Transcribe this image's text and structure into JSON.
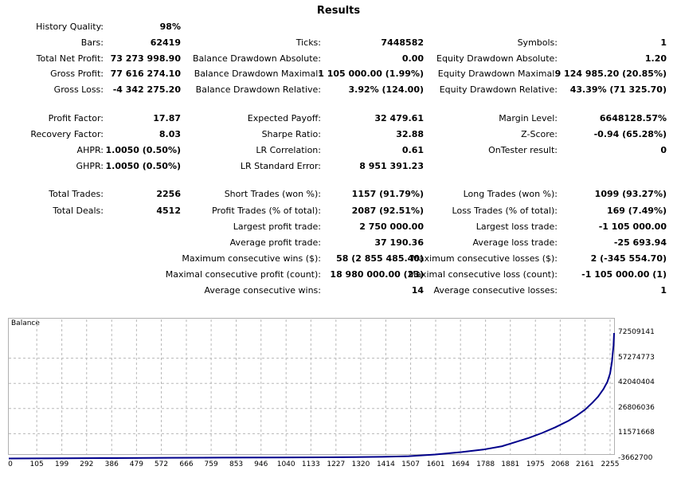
{
  "report": {
    "title": "Results",
    "rows": [
      {
        "key": "history_quality",
        "label": "History Quality:",
        "value": "98%",
        "col": 0,
        "row": 0
      },
      {
        "key": "bars",
        "label": "Bars:",
        "value": "62419",
        "col": 0,
        "row": 1
      },
      {
        "key": "ticks",
        "label": "Ticks:",
        "value": "7448582",
        "col": 1,
        "row": 1
      },
      {
        "key": "symbols",
        "label": "Symbols:",
        "value": "1",
        "col": 2,
        "row": 1
      },
      {
        "key": "total_net_profit",
        "label": "Total Net Profit:",
        "value": "73 273 998.90",
        "col": 0,
        "row": 2
      },
      {
        "key": "balance_drawdown_absolute",
        "label": "Balance Drawdown Absolute:",
        "value": "0.00",
        "col": 1,
        "row": 2
      },
      {
        "key": "equity_drawdown_absolute",
        "label": "Equity Drawdown Absolute:",
        "value": "1.20",
        "col": 2,
        "row": 2
      },
      {
        "key": "gross_profit",
        "label": "Gross Profit:",
        "value": "77 616 274.10",
        "col": 0,
        "row": 3
      },
      {
        "key": "balance_drawdown_maximal",
        "label": "Balance Drawdown Maximal:",
        "value": "1 105 000.00 (1.99%)",
        "col": 1,
        "row": 3
      },
      {
        "key": "equity_drawdown_maximal",
        "label": "Equity Drawdown Maximal:",
        "value": "9 124 985.20 (20.85%)",
        "col": 2,
        "row": 3
      },
      {
        "key": "gross_loss",
        "label": "Gross Loss:",
        "value": "-4 342 275.20",
        "col": 0,
        "row": 4
      },
      {
        "key": "balance_drawdown_relative",
        "label": "Balance Drawdown Relative:",
        "value": "3.92% (124.00)",
        "col": 1,
        "row": 4
      },
      {
        "key": "equity_drawdown_relative",
        "label": "Equity Drawdown Relative:",
        "value": "43.39% (71 325.70)",
        "col": 2,
        "row": 4
      },
      {
        "key": "profit_factor",
        "label": "Profit Factor:",
        "value": "17.87",
        "col": 0,
        "row": 6
      },
      {
        "key": "expected_payoff",
        "label": "Expected Payoff:",
        "value": "32 479.61",
        "col": 1,
        "row": 6
      },
      {
        "key": "margin_level",
        "label": "Margin Level:",
        "value": "6648128.57%",
        "col": 2,
        "row": 6
      },
      {
        "key": "recovery_factor",
        "label": "Recovery Factor:",
        "value": "8.03",
        "col": 0,
        "row": 7
      },
      {
        "key": "sharpe_ratio",
        "label": "Sharpe Ratio:",
        "value": "32.88",
        "col": 1,
        "row": 7
      },
      {
        "key": "z_score",
        "label": "Z-Score:",
        "value": "-0.94 (65.28%)",
        "col": 2,
        "row": 7
      },
      {
        "key": "ahpr",
        "label": "AHPR:",
        "value": "1.0050 (0.50%)",
        "col": 0,
        "row": 8
      },
      {
        "key": "lr_correlation",
        "label": "LR Correlation:",
        "value": "0.61",
        "col": 1,
        "row": 8
      },
      {
        "key": "ontester_result",
        "label": "OnTester result:",
        "value": "0",
        "col": 2,
        "row": 8
      },
      {
        "key": "ghpr",
        "label": "GHPR:",
        "value": "1.0050 (0.50%)",
        "col": 0,
        "row": 9
      },
      {
        "key": "lr_standard_error",
        "label": "LR Standard Error:",
        "value": "8 951 391.23",
        "col": 1,
        "row": 9
      },
      {
        "key": "total_trades",
        "label": "Total Trades:",
        "value": "2256",
        "col": 0,
        "row": 11
      },
      {
        "key": "short_trades",
        "label": "Short Trades (won %):",
        "value": "1157 (91.79%)",
        "col": 1,
        "row": 11
      },
      {
        "key": "long_trades",
        "label": "Long Trades (won %):",
        "value": "1099 (93.27%)",
        "col": 2,
        "row": 11
      },
      {
        "key": "total_deals",
        "label": "Total Deals:",
        "value": "4512",
        "col": 0,
        "row": 12
      },
      {
        "key": "profit_trades",
        "label": "Profit Trades (% of total):",
        "value": "2087 (92.51%)",
        "col": 1,
        "row": 12
      },
      {
        "key": "loss_trades",
        "label": "Loss Trades (% of total):",
        "value": "169 (7.49%)",
        "col": 2,
        "row": 12
      },
      {
        "key": "largest_profit_trade",
        "label": "Largest profit trade:",
        "value": "2 750 000.00",
        "col": 1,
        "row": 13
      },
      {
        "key": "largest_loss_trade",
        "label": "Largest loss trade:",
        "value": "-1 105 000.00",
        "col": 2,
        "row": 13
      },
      {
        "key": "average_profit_trade",
        "label": "Average profit trade:",
        "value": "37 190.36",
        "col": 1,
        "row": 14
      },
      {
        "key": "average_loss_trade",
        "label": "Average loss trade:",
        "value": "-25 693.94",
        "col": 2,
        "row": 14
      },
      {
        "key": "max_consecutive_wins",
        "label": "Maximum consecutive wins ($):",
        "value": "58 (2 855 485.40)",
        "col": 1,
        "row": 15
      },
      {
        "key": "max_consecutive_losses",
        "label": "Maximum consecutive losses ($):",
        "value": "2 (-345 554.70)",
        "col": 2,
        "row": 15
      },
      {
        "key": "maximal_consecutive_profit",
        "label": "Maximal consecutive profit (count):",
        "value": "18 980 000.00 (23)",
        "col": 1,
        "row": 16
      },
      {
        "key": "maximal_consecutive_loss",
        "label": "Maximal consecutive loss (count):",
        "value": "-1 105 000.00 (1)",
        "col": 1,
        "row": 16,
        "col_override": 2
      },
      {
        "key": "average_consecutive_wins",
        "label": "Average consecutive wins:",
        "value": "14",
        "col": 1,
        "row": 17
      },
      {
        "key": "average_consecutive_losses",
        "label": "Average consecutive losses:",
        "value": "1",
        "col": 2,
        "row": 17
      }
    ]
  },
  "chart_data": {
    "type": "line",
    "title": "Balance",
    "series": [
      {
        "name": "Balance",
        "color": "#00008b",
        "x": [
          0,
          200,
          400,
          600,
          800,
          1000,
          1100,
          1200,
          1300,
          1400,
          1500,
          1600,
          1700,
          1780,
          1850,
          1900,
          1950,
          2000,
          2050,
          2100,
          2130,
          2160,
          2190,
          2210,
          2230,
          2245,
          2255,
          2262,
          2268,
          2270
        ],
        "y": [
          -3400000,
          -3300000,
          -3200000,
          -3000000,
          -2900000,
          -2800000,
          -2750000,
          -2700000,
          -2600000,
          -2400000,
          -2000000,
          -1000000,
          500000,
          2000000,
          4000000,
          6500000,
          9000000,
          12000000,
          15500000,
          19500000,
          22500000,
          26000000,
          30500000,
          34000000,
          38500000,
          43000000,
          48000000,
          55000000,
          65000000,
          72509141
        ]
      }
    ],
    "x_ticks": [
      "0",
      "105",
      "199",
      "292",
      "386",
      "479",
      "572",
      "666",
      "759",
      "853",
      "946",
      "1040",
      "1133",
      "1227",
      "1320",
      "1414",
      "1507",
      "1601",
      "1694",
      "1788",
      "1881",
      "1975",
      "2068",
      "2161",
      "2255"
    ],
    "y_ticks": [
      "72509141",
      "57274773",
      "42040404",
      "26806036",
      "11571668",
      "-3662700"
    ],
    "xlim": [
      0,
      2270
    ],
    "ylim": [
      -3662700,
      72509141
    ],
    "grid": true
  }
}
